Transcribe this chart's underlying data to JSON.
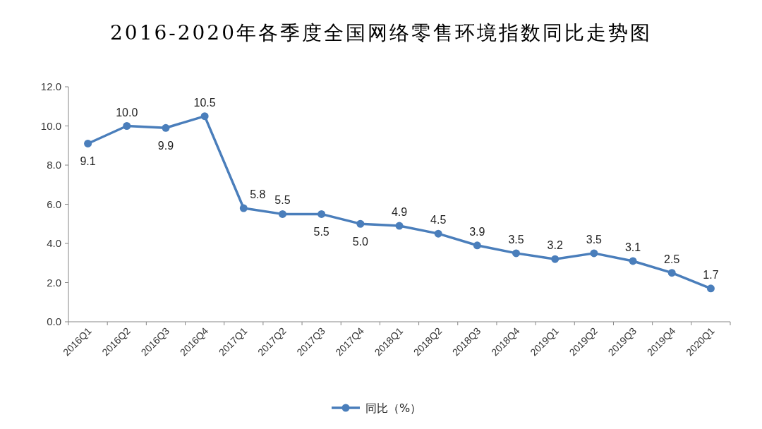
{
  "chart_data": {
    "type": "line",
    "title": "2016-2020年各季度全国网络零售环境指数同比走势图",
    "categories": [
      "2016Q1",
      "2016Q2",
      "2016Q3",
      "2016Q4",
      "2017Q1",
      "2017Q2",
      "2017Q3",
      "2017Q4",
      "2018Q1",
      "2018Q2",
      "2018Q3",
      "2018Q4",
      "2019Q1",
      "2019Q2",
      "2019Q3",
      "2019Q4",
      "2020Q1"
    ],
    "series": [
      {
        "name": "同比（%）",
        "color": "#4a7ebb",
        "values": [
          9.1,
          10.0,
          9.9,
          10.5,
          5.8,
          5.5,
          5.5,
          5.0,
          4.9,
          4.5,
          3.9,
          3.5,
          3.2,
          3.5,
          3.1,
          2.5,
          1.7
        ],
        "value_labels": [
          "9.1",
          "10.0",
          "9.9",
          "10.5",
          "5.8",
          "5.5",
          "5.5",
          "5.0",
          "4.9",
          "4.5",
          "3.9",
          "3.5",
          "3.2",
          "3.5",
          "3.1",
          "2.5",
          "1.7"
        ]
      }
    ],
    "ylim": [
      0,
      12
    ],
    "yticks": [
      {
        "value": 0,
        "label": "0.0"
      },
      {
        "value": 2,
        "label": "2.0"
      },
      {
        "value": 4,
        "label": "4.0"
      },
      {
        "value": 6,
        "label": "6.0"
      },
      {
        "value": 8,
        "label": "8.0"
      },
      {
        "value": 10,
        "label": "10.0"
      },
      {
        "value": 12,
        "label": "12.0"
      }
    ],
    "legend": "bottom",
    "marker": "circle",
    "line_style": "solid"
  }
}
